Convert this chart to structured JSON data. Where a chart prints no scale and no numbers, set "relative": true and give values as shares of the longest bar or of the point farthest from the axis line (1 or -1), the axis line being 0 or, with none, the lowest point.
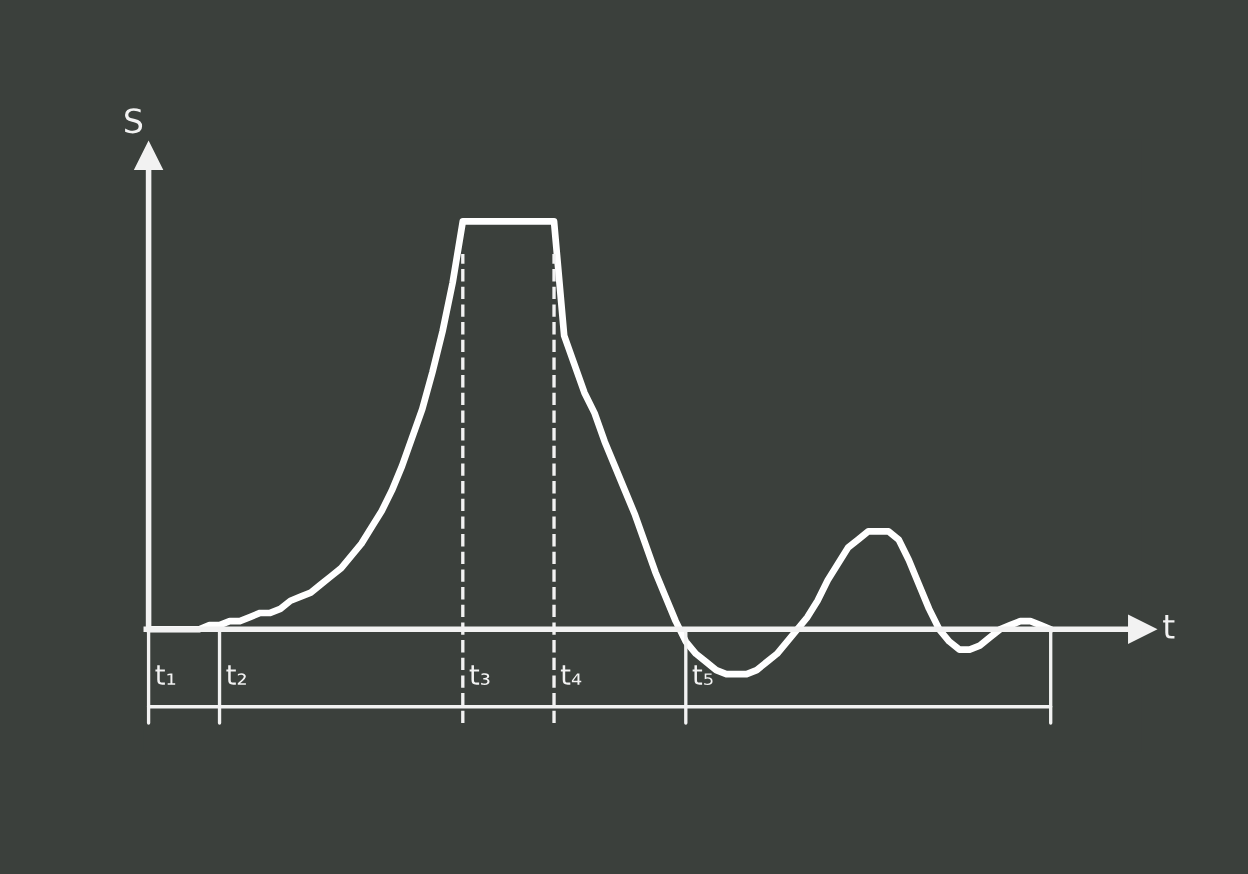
{
  "chart_data": {
    "type": "line",
    "relative": true,
    "xlabel": "t",
    "ylabel": "S",
    "categories": [
      null,
      null,
      null,
      null,
      null,
      null,
      null,
      null,
      null,
      null,
      null,
      null,
      null,
      null,
      null,
      null,
      null,
      null,
      null,
      null,
      null,
      null,
      null,
      null,
      null,
      null,
      null,
      null,
      null,
      null,
      null,
      null,
      null,
      null,
      null,
      null,
      null,
      null,
      null,
      null,
      null,
      null,
      null,
      null,
      null,
      null,
      null,
      null,
      null,
      null,
      null,
      null,
      null,
      null,
      null,
      null,
      null,
      null,
      null,
      null,
      null,
      null,
      null,
      null,
      null,
      null,
      null,
      null,
      null,
      null,
      null,
      null,
      null,
      null,
      null,
      null,
      null,
      null,
      null,
      null,
      null,
      null,
      null,
      null,
      null,
      null,
      null,
      null,
      null,
      null
    ],
    "series": [
      {
        "color": "#ffffff",
        "values": [
          0,
          0,
          0,
          0,
          0,
          0,
          0.01,
          0.01,
          0.02,
          0.02,
          0.03,
          0.04,
          0.04,
          0.05,
          0.07,
          0.08,
          0.09,
          0.11,
          0.13,
          0.15,
          0.18,
          0.21,
          0.25,
          0.29,
          0.34,
          0.4,
          0.47,
          0.54,
          0.63,
          0.73,
          0.85,
          1,
          1,
          1,
          1,
          1,
          1,
          1,
          1,
          1,
          1,
          0.72,
          0.65,
          0.58,
          0.53,
          0.46,
          0.4,
          0.34,
          0.28,
          0.21,
          0.14,
          0.08,
          0.02,
          -0.03,
          -0.06,
          -0.08,
          -0.1,
          -0.11,
          -0.11,
          -0.11,
          -0.1,
          -0.08,
          -0.06,
          -0.03,
          0,
          0.03,
          0.07,
          0.12,
          0.16,
          0.2,
          0.22,
          0.24,
          0.24,
          0.24,
          0.22,
          0.17,
          0.11,
          0.05,
          0,
          -0.03,
          -0.05,
          -0.05,
          -0.04,
          -0.02,
          0,
          0.01,
          0.02,
          0.02,
          0.01,
          0
        ]
      }
    ],
    "annotations": [
      "t₁",
      "t₂",
      "t₃",
      "t₄",
      "t₅"
    ],
    "line_style": "solid",
    "marker": "none"
  }
}
